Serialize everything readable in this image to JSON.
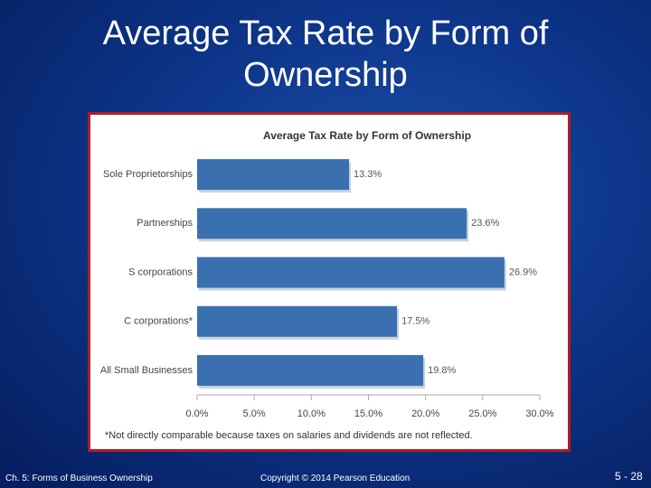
{
  "slide_title": "Average Tax Rate by Form of Ownership",
  "chart_data": {
    "type": "bar",
    "orientation": "horizontal",
    "title": "Average Tax Rate by Form of Ownership",
    "categories": [
      "Sole Proprietorships",
      "Partnerships",
      "S corporations",
      "C corporations*",
      "All Small Businesses"
    ],
    "values": [
      13.3,
      23.6,
      26.9,
      17.5,
      19.8
    ],
    "value_labels": [
      "13.3%",
      "23.6%",
      "26.9%",
      "17.5%",
      "19.8%"
    ],
    "color": "#3a70b0",
    "xlim": [
      0,
      30
    ],
    "xticks": [
      {
        "value": 0,
        "label": "0.0%"
      },
      {
        "value": 5,
        "label": "5.0%"
      },
      {
        "value": 10,
        "label": "10.0%"
      },
      {
        "value": 15,
        "label": "15.0%"
      },
      {
        "value": 20,
        "label": "20.0%"
      },
      {
        "value": 25,
        "label": "25.0%"
      },
      {
        "value": 30,
        "label": "30.0%"
      }
    ],
    "grid": false,
    "footnote": "*Not directly comparable because taxes on salaries and dividends are not reflected."
  },
  "footer": {
    "chapter": "Ch. 5: Forms of Business Ownership",
    "copyright": "Copyright © 2014 Pearson Education",
    "page": "5 - 28"
  }
}
